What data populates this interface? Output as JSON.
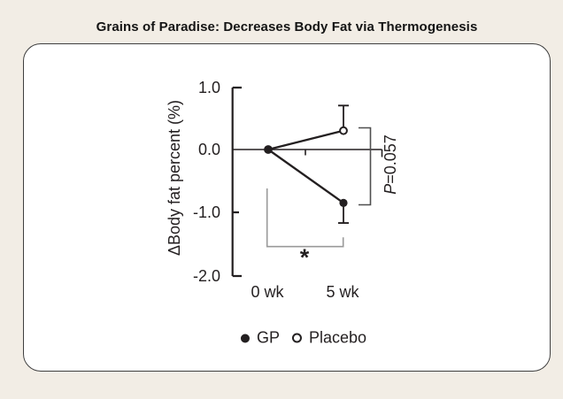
{
  "page": {
    "title": "Grains of Paradise: Decreases Body Fat via Thermogenesis"
  },
  "colors": {
    "background": "#f2ede5",
    "card_background": "#ffffff",
    "card_border": "#3f3f3f",
    "ink": "#231f20",
    "significance_bracket": "#9a9a9a",
    "p_bracket": "#4f4f4f"
  },
  "chart_data": {
    "type": "line",
    "title": "Grains of Paradise: Decreases Body Fat via Thermogenesis",
    "ylabel": "ΔBody fat percent (%)",
    "ylim": [
      -2.0,
      1.0
    ],
    "ytick_values": [
      1.0,
      0.0,
      -1.0,
      -2.0
    ],
    "categories": [
      "0 wk",
      "5 wk"
    ],
    "grid": false,
    "legend_position": "bottom",
    "series": [
      {
        "key": "gp",
        "name": "GP",
        "marker": "filled-circle",
        "values": [
          0.0,
          -0.85
        ],
        "errors": [
          null,
          0.32
        ],
        "error_dir": "down"
      },
      {
        "key": "placebo",
        "name": "Placebo",
        "marker": "open-circle",
        "values": [
          0.0,
          0.3
        ],
        "errors": [
          null,
          0.4
        ],
        "error_dir": "up"
      }
    ],
    "annotations": [
      {
        "id": "significance",
        "label": "*"
      },
      {
        "id": "p_value",
        "label": "P=0.057"
      }
    ]
  },
  "labels": {
    "ytick_0": "1.0",
    "ytick_1": "0.0",
    "ytick_2": "-1.0",
    "ytick_3": "-2.0",
    "asterisk": "*",
    "p_italic": "P",
    "p_rest": "=0.057"
  },
  "legend": {
    "gp": "GP",
    "placebo": "Placebo"
  }
}
